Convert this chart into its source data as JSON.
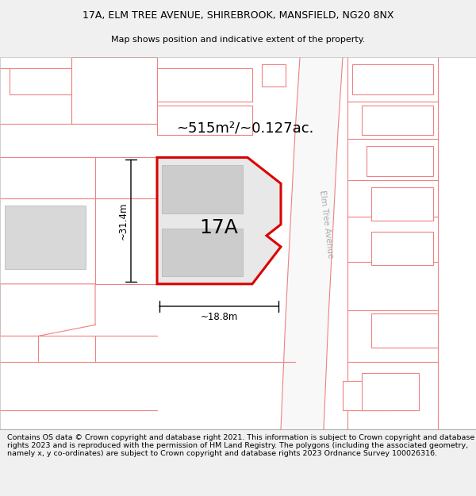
{
  "title_line1": "17A, ELM TREE AVENUE, SHIREBROOK, MANSFIELD, NG20 8NX",
  "title_line2": "Map shows position and indicative extent of the property.",
  "label_17A": "17A",
  "area_label": "~515m²/~0.127ac.",
  "width_label": "~18.8m",
  "height_label": "~31.4m",
  "road_label": "Elm Tree Avenue",
  "copyright_text": "Contains OS data © Crown copyright and database right 2021. This information is subject to Crown copyright and database rights 2023 and is reproduced with the permission of HM Land Registry. The polygons (including the associated geometry, namely x, y co-ordinates) are subject to Crown copyright and database rights 2023 Ordnance Survey 100026316.",
  "bg_color": "#f0f0f0",
  "map_bg": "#ffffff",
  "plot_fill": "#e8e8e8",
  "plot_edge": "#dd0000",
  "building_fill": "#cccccc",
  "building_edge": "#bbbbbb",
  "neighbor_edge": "#f08080",
  "neighbor_fill": "#ffffff",
  "road_color": "#f08080",
  "title_fontsize": 9.0,
  "subtitle_fontsize": 8.0,
  "label_fontsize": 18,
  "area_fontsize": 13,
  "dim_fontsize": 8.5,
  "road_label_fontsize": 7.5,
  "copyright_fontsize": 6.8
}
